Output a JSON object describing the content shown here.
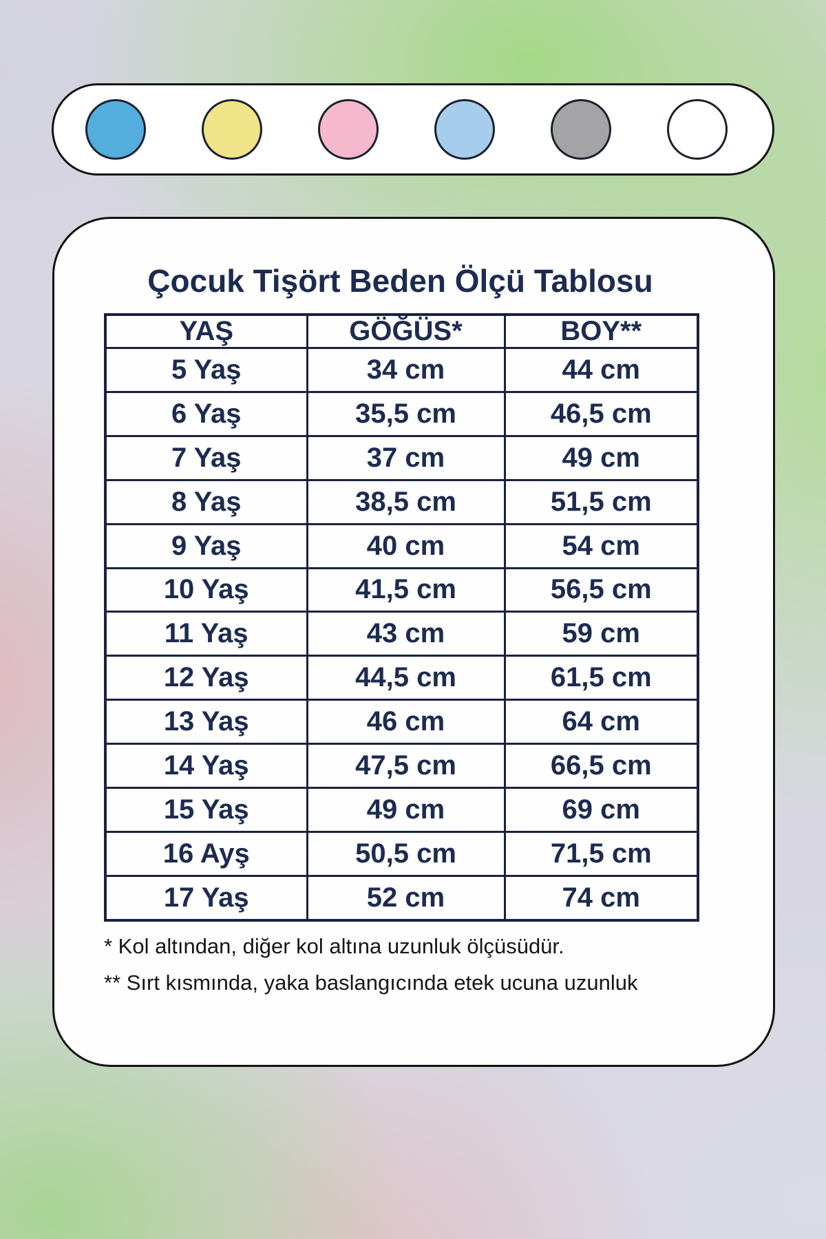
{
  "color_swatches": {
    "items": [
      {
        "name": "blue",
        "hex": "#53aedd"
      },
      {
        "name": "yellow",
        "hex": "#f1e488"
      },
      {
        "name": "pink",
        "hex": "#f6b8cd"
      },
      {
        "name": "light-blue",
        "hex": "#a7cdec"
      },
      {
        "name": "gray",
        "hex": "#a4a4a6"
      },
      {
        "name": "white",
        "hex": "#ffffff"
      }
    ]
  },
  "chart_data": {
    "type": "table",
    "title": "Çocuk Tişört Beden Ölçü Tablosu",
    "columns": [
      "YAŞ",
      "GÖĞÜS*",
      "BOY**"
    ],
    "rows": [
      [
        "5 Yaş",
        "34 cm",
        "44 cm"
      ],
      [
        "6 Yaş",
        "35,5 cm",
        "46,5 cm"
      ],
      [
        "7 Yaş",
        "37 cm",
        "49 cm"
      ],
      [
        "8 Yaş",
        "38,5 cm",
        "51,5 cm"
      ],
      [
        "9 Yaş",
        "40 cm",
        "54 cm"
      ],
      [
        "10 Yaş",
        "41,5 cm",
        "56,5 cm"
      ],
      [
        "11 Yaş",
        "43 cm",
        "59 cm"
      ],
      [
        "12 Yaş",
        "44,5 cm",
        "61,5 cm"
      ],
      [
        "13 Yaş",
        "46 cm",
        "64 cm"
      ],
      [
        "14 Yaş",
        "47,5 cm",
        "66,5 cm"
      ],
      [
        "15 Yaş",
        "49 cm",
        "69 cm"
      ],
      [
        "16 Ayş",
        "50,5 cm",
        "71,5 cm"
      ],
      [
        "17 Yaş",
        "52 cm",
        "74 cm"
      ]
    ],
    "footnotes": [
      "* Kol altından, diğer kol altına uzunluk ölçüsüdür.",
      "** Sırt kısmında, yaka baslangıcında etek ucuna uzunluk"
    ]
  },
  "colors": {
    "panel_background": "#fefefe",
    "text_navy": "#1d2b50",
    "border_dark": "#1a2240",
    "bg_green": "#a6d989",
    "bg_pink": "#dfb4b8",
    "bg_lavender": "#d8d7e1"
  }
}
